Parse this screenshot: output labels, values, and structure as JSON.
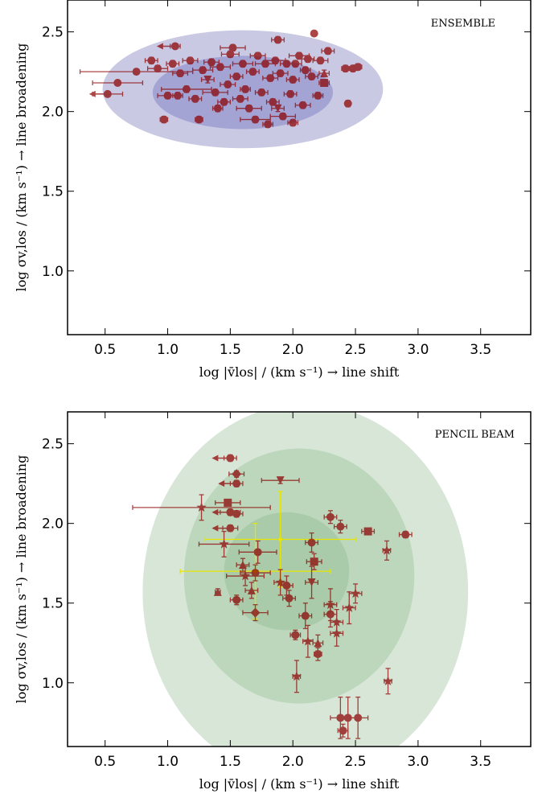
{
  "chart_data": [
    {
      "type": "scatter",
      "annotation": "ENSEMBLE",
      "xlabel": "log |v̄los| / (km s⁻¹) → line shift",
      "ylabel": "log σv,los / (km s⁻¹) → line broadening",
      "xlim": [
        0.2,
        3.9
      ],
      "ylim": [
        0.6,
        2.7
      ],
      "x_ticks": [
        "0.5",
        "1.0",
        "1.5",
        "2.0",
        "2.5",
        "3.0",
        "3.5"
      ],
      "y_ticks": [
        "1.0",
        "1.5",
        "2.0",
        "2.5"
      ],
      "colors": {
        "marker": "#8b0000",
        "ellipse": "#c9c9e3",
        "ellipse_inner": "#a4a4d4"
      },
      "ellipses": [
        {
          "cx": 1.6,
          "cy": 2.14,
          "rx": 1.12,
          "ry": 0.37
        },
        {
          "cx": 1.6,
          "cy": 2.12,
          "rx": 0.72,
          "ry": 0.23
        }
      ],
      "points": [
        {
          "x": 0.52,
          "y": 2.11,
          "xerr": 0.12,
          "yerr": 0.01,
          "m": "o",
          "ul": true
        },
        {
          "x": 0.6,
          "y": 2.18,
          "xerr": 0.2,
          "yerr": 0.01,
          "m": "o"
        },
        {
          "x": 0.75,
          "y": 2.25,
          "xerr": 0.45,
          "yerr": 0.01,
          "m": "o"
        },
        {
          "x": 0.87,
          "y": 2.32,
          "xerr": 0.05,
          "yerr": 0.02,
          "m": "o"
        },
        {
          "x": 0.92,
          "y": 2.27,
          "xerr": 0.08,
          "yerr": 0.02,
          "m": "o"
        },
        {
          "x": 0.97,
          "y": 1.95,
          "xerr": 0.03,
          "yerr": 0.02,
          "m": "o"
        },
        {
          "x": 1.0,
          "y": 2.1,
          "xerr": 0.08,
          "yerr": 0.02,
          "m": "o"
        },
        {
          "x": 1.04,
          "y": 2.3,
          "xerr": 0.05,
          "yerr": 0.02,
          "m": "o"
        },
        {
          "x": 1.06,
          "y": 2.41,
          "xerr": 0.04,
          "yerr": 0.01,
          "m": "o",
          "ul": true
        },
        {
          "x": 1.08,
          "y": 2.1,
          "xerr": 0.04,
          "yerr": 0.02,
          "m": "o"
        },
        {
          "x": 1.1,
          "y": 2.24,
          "xerr": 0.06,
          "yerr": 0.02,
          "m": "o"
        },
        {
          "x": 1.15,
          "y": 2.14,
          "xerr": 0.2,
          "yerr": 0.02,
          "m": "o"
        },
        {
          "x": 1.18,
          "y": 2.32,
          "xerr": 0.06,
          "yerr": 0.02,
          "m": "o"
        },
        {
          "x": 1.22,
          "y": 2.08,
          "xerr": 0.05,
          "yerr": 0.02,
          "m": "o"
        },
        {
          "x": 1.25,
          "y": 1.95,
          "xerr": 0.03,
          "yerr": 0.02,
          "m": "o"
        },
        {
          "x": 1.28,
          "y": 2.26,
          "xerr": 0.08,
          "yerr": 0.02,
          "m": "o"
        },
        {
          "x": 1.32,
          "y": 2.2,
          "xerr": 0.05,
          "yerr": 0.02,
          "m": "v"
        },
        {
          "x": 1.35,
          "y": 2.31,
          "xerr": 0.06,
          "yerr": 0.02,
          "m": "o"
        },
        {
          "x": 1.38,
          "y": 2.12,
          "xerr": 0.1,
          "yerr": 0.02,
          "m": "o"
        },
        {
          "x": 1.4,
          "y": 2.02,
          "xerr": 0.04,
          "yerr": 0.02,
          "m": "o"
        },
        {
          "x": 1.42,
          "y": 2.28,
          "xerr": 0.08,
          "yerr": 0.02,
          "m": "o"
        },
        {
          "x": 1.45,
          "y": 2.06,
          "xerr": 0.05,
          "yerr": 0.02,
          "m": "o"
        },
        {
          "x": 1.48,
          "y": 2.17,
          "xerr": 0.06,
          "yerr": 0.02,
          "m": "o"
        },
        {
          "x": 1.5,
          "y": 2.36,
          "xerr": 0.07,
          "yerr": 0.02,
          "m": "o"
        },
        {
          "x": 1.52,
          "y": 2.4,
          "xerr": 0.1,
          "yerr": 0.02,
          "m": "o"
        },
        {
          "x": 1.55,
          "y": 2.22,
          "xerr": 0.05,
          "yerr": 0.02,
          "m": "o"
        },
        {
          "x": 1.58,
          "y": 2.08,
          "xerr": 0.06,
          "yerr": 0.02,
          "m": "o"
        },
        {
          "x": 1.6,
          "y": 2.3,
          "xerr": 0.08,
          "yerr": 0.02,
          "m": "o"
        },
        {
          "x": 1.62,
          "y": 2.14,
          "xerr": 0.04,
          "yerr": 0.02,
          "m": "o"
        },
        {
          "x": 1.65,
          "y": 2.02,
          "xerr": 0.1,
          "yerr": 0.02,
          "m": "o"
        },
        {
          "x": 1.68,
          "y": 2.25,
          "xerr": 0.05,
          "yerr": 0.02,
          "m": "o"
        },
        {
          "x": 1.7,
          "y": 1.95,
          "xerr": 0.12,
          "yerr": 0.02,
          "m": "o"
        },
        {
          "x": 1.72,
          "y": 2.35,
          "xerr": 0.06,
          "yerr": 0.02,
          "m": "o"
        },
        {
          "x": 1.75,
          "y": 2.12,
          "xerr": 0.05,
          "yerr": 0.02,
          "m": "o"
        },
        {
          "x": 1.78,
          "y": 2.3,
          "xerr": 0.08,
          "yerr": 0.02,
          "m": "o"
        },
        {
          "x": 1.8,
          "y": 1.92,
          "xerr": 0.04,
          "yerr": 0.02,
          "m": "o"
        },
        {
          "x": 1.82,
          "y": 2.21,
          "xerr": 0.06,
          "yerr": 0.02,
          "m": "o"
        },
        {
          "x": 1.84,
          "y": 2.06,
          "xerr": 0.05,
          "yerr": 0.02,
          "m": "o"
        },
        {
          "x": 1.86,
          "y": 2.32,
          "xerr": 0.08,
          "yerr": 0.02,
          "m": "o"
        },
        {
          "x": 1.88,
          "y": 2.45,
          "xerr": 0.05,
          "yerr": 0.02,
          "m": "o"
        },
        {
          "x": 1.88,
          "y": 2.02,
          "xerr": 0.05,
          "yerr": 0.02,
          "m": "v"
        },
        {
          "x": 1.9,
          "y": 2.24,
          "xerr": 0.06,
          "yerr": 0.02,
          "m": "o"
        },
        {
          "x": 1.92,
          "y": 1.97,
          "xerr": 0.1,
          "yerr": 0.02,
          "m": "o"
        },
        {
          "x": 1.95,
          "y": 2.3,
          "xerr": 0.05,
          "yerr": 0.02,
          "m": "o"
        },
        {
          "x": 1.98,
          "y": 2.11,
          "xerr": 0.05,
          "yerr": 0.02,
          "m": "o"
        },
        {
          "x": 2.0,
          "y": 2.2,
          "xerr": 0.05,
          "yerr": 0.02,
          "m": "o"
        },
        {
          "x": 2.0,
          "y": 1.93,
          "xerr": 0.04,
          "yerr": 0.02,
          "m": "o"
        },
        {
          "x": 2.02,
          "y": 2.3,
          "xerr": 0.05,
          "yerr": 0.02,
          "m": "o"
        },
        {
          "x": 2.05,
          "y": 2.35,
          "xerr": 0.08,
          "yerr": 0.02,
          "m": "o"
        },
        {
          "x": 2.08,
          "y": 2.04,
          "xerr": 0.06,
          "yerr": 0.02,
          "m": "o"
        },
        {
          "x": 2.1,
          "y": 2.26,
          "xerr": 0.04,
          "yerr": 0.02,
          "m": "o"
        },
        {
          "x": 2.12,
          "y": 2.33,
          "xerr": 0.05,
          "yerr": 0.02,
          "m": "o"
        },
        {
          "x": 2.15,
          "y": 2.22,
          "xerr": 0.05,
          "yerr": 0.02,
          "m": "o"
        },
        {
          "x": 2.17,
          "y": 2.49,
          "xerr": 0.02,
          "yerr": 0.01,
          "m": "o"
        },
        {
          "x": 2.2,
          "y": 2.1,
          "xerr": 0.04,
          "yerr": 0.02,
          "m": "o"
        },
        {
          "x": 2.22,
          "y": 2.32,
          "xerr": 0.06,
          "yerr": 0.02,
          "m": "o"
        },
        {
          "x": 2.25,
          "y": 2.24,
          "xerr": 0.04,
          "yerr": 0.02,
          "m": "^"
        },
        {
          "x": 2.25,
          "y": 2.18,
          "xerr": 0.04,
          "yerr": 0.02,
          "m": "s"
        },
        {
          "x": 2.28,
          "y": 2.38,
          "xerr": 0.05,
          "yerr": 0.02,
          "m": "o"
        },
        {
          "x": 2.42,
          "y": 2.27,
          "xerr": 0.03,
          "yerr": 0.02,
          "m": "o"
        },
        {
          "x": 2.44,
          "y": 2.05,
          "xerr": 0.02,
          "yerr": 0.02,
          "m": "o"
        },
        {
          "x": 2.48,
          "y": 2.27,
          "xerr": 0.03,
          "yerr": 0.02,
          "m": "o"
        },
        {
          "x": 2.52,
          "y": 2.28,
          "xerr": 0.03,
          "yerr": 0.02,
          "m": "o"
        }
      ]
    },
    {
      "type": "scatter",
      "annotation": "PENCIL BEAM",
      "xlabel": "log |v̄los| / (km s⁻¹) → line shift",
      "ylabel": "log σv,los / (km s⁻¹) → line broadening",
      "xlim": [
        0.2,
        3.9
      ],
      "ylim": [
        0.6,
        2.7
      ],
      "x_ticks": [
        "0.5",
        "1.0",
        "1.5",
        "2.0",
        "2.5",
        "3.0",
        "3.5"
      ],
      "y_ticks": [
        "1.0",
        "1.5",
        "2.0",
        "2.5"
      ],
      "colors": {
        "marker": "#8b0000",
        "ellipse_outer": "#d7e6d7",
        "ellipse_mid": "#bcd7bc",
        "ellipse_inner": "#a9cba9",
        "model": "#e6e600"
      },
      "ellipses": [
        {
          "cx": 2.1,
          "cy": 1.57,
          "rx": 1.3,
          "ry": 1.18
        },
        {
          "cx": 2.05,
          "cy": 1.67,
          "rx": 0.92,
          "ry": 0.8
        },
        {
          "cx": 1.95,
          "cy": 1.7,
          "rx": 0.5,
          "ry": 0.37
        }
      ],
      "model_points": [
        {
          "x": 1.9,
          "y": 1.9,
          "xerr": 0.6,
          "yerr": 0.3
        },
        {
          "x": 1.7,
          "y": 1.7,
          "xerr": 0.6,
          "yerr": 0.3
        }
      ],
      "points": [
        {
          "x": 1.5,
          "y": 2.41,
          "xerr": 0.05,
          "yerr": 0.02,
          "m": "o",
          "ul": true
        },
        {
          "x": 1.55,
          "y": 2.31,
          "xerr": 0.06,
          "yerr": 0.02,
          "m": "D"
        },
        {
          "x": 1.55,
          "y": 2.25,
          "xerr": 0.05,
          "yerr": 0.02,
          "m": "o",
          "ul": true
        },
        {
          "x": 1.9,
          "y": 2.27,
          "xerr": 0.15,
          "yerr": 0.02,
          "m": "v"
        },
        {
          "x": 1.48,
          "y": 2.13,
          "xerr": 0.1,
          "yerr": 0.02,
          "m": "s"
        },
        {
          "x": 1.27,
          "y": 2.1,
          "xerr": 0.55,
          "yerr": 0.08,
          "m": "*"
        },
        {
          "x": 1.5,
          "y": 2.07,
          "xerr": 0.08,
          "yerr": 0.02,
          "m": "o",
          "ul": true
        },
        {
          "x": 1.55,
          "y": 2.06,
          "xerr": 0.05,
          "yerr": 0.02,
          "m": "o"
        },
        {
          "x": 1.5,
          "y": 1.97,
          "xerr": 0.06,
          "yerr": 0.02,
          "m": "o",
          "ul": true
        },
        {
          "x": 2.3,
          "y": 2.04,
          "xerr": 0.05,
          "yerr": 0.04,
          "m": "o"
        },
        {
          "x": 2.38,
          "y": 1.98,
          "xerr": 0.05,
          "yerr": 0.04,
          "m": "o"
        },
        {
          "x": 2.6,
          "y": 1.95,
          "xerr": 0.05,
          "yerr": 0.02,
          "m": "s"
        },
        {
          "x": 2.9,
          "y": 1.93,
          "xerr": 0.05,
          "yerr": 0.02,
          "m": "o"
        },
        {
          "x": 2.15,
          "y": 1.88,
          "xerr": 0.05,
          "yerr": 0.06,
          "m": "o"
        },
        {
          "x": 1.45,
          "y": 1.87,
          "xerr": 0.2,
          "yerr": 0.08,
          "m": "*"
        },
        {
          "x": 2.75,
          "y": 1.83,
          "xerr": 0.03,
          "yerr": 0.06,
          "m": "*"
        },
        {
          "x": 1.72,
          "y": 1.82,
          "xerr": 0.15,
          "yerr": 0.07,
          "m": "o"
        },
        {
          "x": 2.17,
          "y": 1.76,
          "xerr": 0.06,
          "yerr": 0.05,
          "m": "s"
        },
        {
          "x": 1.6,
          "y": 1.74,
          "xerr": 0.05,
          "yerr": 0.04,
          "m": "^"
        },
        {
          "x": 1.7,
          "y": 1.69,
          "xerr": 0.12,
          "yerr": 0.05,
          "m": "o"
        },
        {
          "x": 1.62,
          "y": 1.67,
          "xerr": 0.15,
          "yerr": 0.06,
          "m": "*"
        },
        {
          "x": 1.9,
          "y": 1.63,
          "xerr": 0.05,
          "yerr": 0.08,
          "m": "*"
        },
        {
          "x": 2.15,
          "y": 1.63,
          "xerr": 0.05,
          "yerr": 0.1,
          "m": "v"
        },
        {
          "x": 1.95,
          "y": 1.61,
          "xerr": 0.05,
          "yerr": 0.06,
          "m": "o"
        },
        {
          "x": 1.67,
          "y": 1.58,
          "xerr": 0.05,
          "yerr": 0.05,
          "m": "^"
        },
        {
          "x": 1.4,
          "y": 1.57,
          "xerr": 0.02,
          "yerr": 0.02,
          "m": "^"
        },
        {
          "x": 2.5,
          "y": 1.56,
          "xerr": 0.05,
          "yerr": 0.06,
          "m": "*"
        },
        {
          "x": 1.97,
          "y": 1.53,
          "xerr": 0.05,
          "yerr": 0.05,
          "m": "o"
        },
        {
          "x": 1.55,
          "y": 1.52,
          "xerr": 0.05,
          "yerr": 0.03,
          "m": "o"
        },
        {
          "x": 2.3,
          "y": 1.49,
          "xerr": 0.05,
          "yerr": 0.1,
          "m": "*"
        },
        {
          "x": 2.45,
          "y": 1.47,
          "xerr": 0.05,
          "yerr": 0.1,
          "m": "*"
        },
        {
          "x": 1.7,
          "y": 1.44,
          "xerr": 0.1,
          "yerr": 0.05,
          "m": "D"
        },
        {
          "x": 2.3,
          "y": 1.43,
          "xerr": 0.05,
          "yerr": 0.08,
          "m": "o"
        },
        {
          "x": 2.1,
          "y": 1.42,
          "xerr": 0.05,
          "yerr": 0.08,
          "m": "o"
        },
        {
          "x": 2.35,
          "y": 1.38,
          "xerr": 0.05,
          "yerr": 0.08,
          "m": "*"
        },
        {
          "x": 2.35,
          "y": 1.31,
          "xerr": 0.05,
          "yerr": 0.08,
          "m": "*"
        },
        {
          "x": 2.02,
          "y": 1.3,
          "xerr": 0.04,
          "yerr": 0.03,
          "m": "o"
        },
        {
          "x": 2.12,
          "y": 1.26,
          "xerr": 0.04,
          "yerr": 0.1,
          "m": "*"
        },
        {
          "x": 2.2,
          "y": 1.25,
          "xerr": 0.04,
          "yerr": 0.05,
          "m": "^"
        },
        {
          "x": 2.2,
          "y": 1.18,
          "xerr": 0.03,
          "yerr": 0.04,
          "m": "o"
        },
        {
          "x": 2.03,
          "y": 1.04,
          "xerr": 0.03,
          "yerr": 0.1,
          "m": "*"
        },
        {
          "x": 2.76,
          "y": 1.01,
          "xerr": 0.03,
          "yerr": 0.08,
          "m": "*"
        },
        {
          "x": 2.38,
          "y": 0.78,
          "xerr": 0.08,
          "yerr": 0.13,
          "m": "o"
        },
        {
          "x": 2.44,
          "y": 0.78,
          "xerr": 0.06,
          "yerr": 0.13,
          "m": "o"
        },
        {
          "x": 2.52,
          "y": 0.78,
          "xerr": 0.08,
          "yerr": 0.13,
          "m": "o"
        },
        {
          "x": 2.4,
          "y": 0.7,
          "xerr": 0.04,
          "yerr": 0.04,
          "m": "o"
        }
      ]
    }
  ]
}
